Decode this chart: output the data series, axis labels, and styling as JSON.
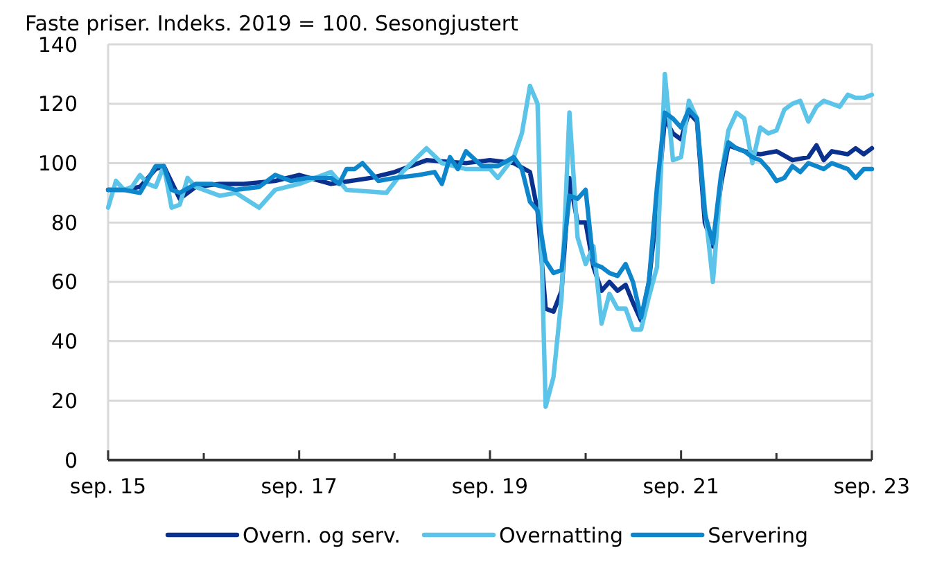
{
  "chart_data": {
    "type": "line",
    "title": "Faste priser. Indeks. 2019 = 100. Sesongjustert",
    "xlim": [
      "2015-09",
      "2023-09"
    ],
    "ylim": [
      0,
      140
    ],
    "yticks": [
      0,
      20,
      40,
      60,
      80,
      100,
      120,
      140
    ],
    "xticks": [
      {
        "value": "2015-09",
        "label": "sep. 15"
      },
      {
        "value": "2016-09",
        "label": null
      },
      {
        "value": "2017-09",
        "label": "sep. 17"
      },
      {
        "value": "2018-09",
        "label": null
      },
      {
        "value": "2019-09",
        "label": "sep. 19"
      },
      {
        "value": "2020-09",
        "label": null
      },
      {
        "value": "2021-09",
        "label": "sep. 21"
      },
      {
        "value": "2022-09",
        "label": null
      },
      {
        "value": "2023-09",
        "label": "sep. 23"
      }
    ],
    "grid": "y",
    "legend": "bottom",
    "line_style": "solid",
    "marker": "none",
    "series": [
      {
        "name": "Overn. og serv.",
        "color": "#0b318f",
        "x": [
          "2015-09",
          "2015-11",
          "2016-01",
          "2016-03",
          "2016-04",
          "2016-06",
          "2016-08",
          "2016-11",
          "2017-02",
          "2017-06",
          "2017-09",
          "2018-01",
          "2018-06",
          "2018-09",
          "2019-01",
          "2019-06",
          "2019-09",
          "2019-12",
          "2020-02",
          "2020-03",
          "2020-04",
          "2020-05",
          "2020-06",
          "2020-07",
          "2020-08",
          "2020-09",
          "2020-10",
          "2020-11",
          "2020-12",
          "2021-01",
          "2021-02",
          "2021-03",
          "2021-04",
          "2021-05",
          "2021-06",
          "2021-07",
          "2021-08",
          "2021-09",
          "2021-10",
          "2021-11",
          "2021-12",
          "2022-01",
          "2022-02",
          "2022-03",
          "2022-04",
          "2022-05",
          "2022-07",
          "2022-09",
          "2022-11",
          "2023-01",
          "2023-02",
          "2023-03",
          "2023-04",
          "2023-06",
          "2023-07",
          "2023-08",
          "2023-09"
        ],
        "values": [
          91,
          91,
          92,
          98,
          99,
          88,
          92,
          93,
          93,
          94,
          96,
          93,
          95,
          97,
          101,
          100,
          101,
          100,
          97,
          84,
          51,
          50,
          57,
          95,
          80,
          80,
          65,
          57,
          60,
          57,
          59,
          53,
          47,
          60,
          85,
          115,
          110,
          108,
          117,
          114,
          80,
          72,
          93,
          106,
          105,
          104,
          103,
          104,
          101,
          102,
          106,
          101,
          104,
          103,
          105,
          103,
          105
        ]
      },
      {
        "name": "Overnatting",
        "color": "#5bc4e8",
        "x": [
          "2015-09",
          "2015-10",
          "2015-11",
          "2015-12",
          "2016-01",
          "2016-02",
          "2016-03",
          "2016-04",
          "2016-05",
          "2016-06",
          "2016-07",
          "2016-08",
          "2016-11",
          "2017-01",
          "2017-04",
          "2017-06",
          "2017-09",
          "2018-01",
          "2018-03",
          "2018-08",
          "2018-10",
          "2019-01",
          "2019-03",
          "2019-06",
          "2019-09",
          "2019-10",
          "2019-12",
          "2020-01",
          "2020-02",
          "2020-03",
          "2020-04",
          "2020-05",
          "2020-06",
          "2020-07",
          "2020-08",
          "2020-09",
          "2020-10",
          "2020-11",
          "2020-12",
          "2021-01",
          "2021-02",
          "2021-03",
          "2021-04",
          "2021-05",
          "2021-06",
          "2021-07",
          "2021-08",
          "2021-09",
          "2021-10",
          "2021-11",
          "2021-12",
          "2022-01",
          "2022-02",
          "2022-03",
          "2022-04",
          "2022-05",
          "2022-06",
          "2022-07",
          "2022-08",
          "2022-09",
          "2022-10",
          "2022-11",
          "2022-12",
          "2023-01",
          "2023-02",
          "2023-03",
          "2023-04",
          "2023-05",
          "2023-06",
          "2023-07",
          "2023-08",
          "2023-09"
        ],
        "values": [
          85,
          94,
          91,
          92,
          96,
          93,
          92,
          99,
          85,
          86,
          95,
          92,
          89,
          90,
          85,
          91,
          93,
          97,
          91,
          90,
          97,
          105,
          100,
          98,
          98,
          95,
          102,
          110,
          126,
          120,
          18,
          28,
          55,
          117,
          75,
          66,
          72,
          46,
          56,
          51,
          51,
          44,
          44,
          55,
          65,
          130,
          101,
          102,
          121,
          115,
          85,
          60,
          95,
          111,
          117,
          115,
          100,
          112,
          110,
          111,
          118,
          120,
          121,
          114,
          119,
          121,
          120,
          119,
          123,
          122,
          122,
          123
        ]
      },
      {
        "name": "Servering",
        "color": "#0e86cc",
        "x": [
          "2015-09",
          "2015-11",
          "2016-01",
          "2016-03",
          "2016-04",
          "2016-05",
          "2016-06",
          "2016-08",
          "2016-10",
          "2017-01",
          "2017-04",
          "2017-06",
          "2017-08",
          "2017-10",
          "2018-01",
          "2018-02",
          "2018-03",
          "2018-04",
          "2018-05",
          "2018-07",
          "2018-09",
          "2018-12",
          "2019-02",
          "2019-03",
          "2019-04",
          "2019-05",
          "2019-06",
          "2019-08",
          "2019-10",
          "2019-12",
          "2020-01",
          "2020-02",
          "2020-03",
          "2020-04",
          "2020-05",
          "2020-06",
          "2020-07",
          "2020-08",
          "2020-09",
          "2020-10",
          "2020-11",
          "2020-12",
          "2021-01",
          "2021-02",
          "2021-03",
          "2021-04",
          "2021-05",
          "2021-06",
          "2021-07",
          "2021-08",
          "2021-09",
          "2021-10",
          "2021-11",
          "2021-12",
          "2022-01",
          "2022-02",
          "2022-03",
          "2022-04",
          "2022-05",
          "2022-06",
          "2022-07",
          "2022-08",
          "2022-09",
          "2022-10",
          "2022-11",
          "2022-12",
          "2023-01",
          "2023-02",
          "2023-03",
          "2023-04",
          "2023-05",
          "2023-06",
          "2023-07",
          "2023-08",
          "2023-09"
        ],
        "values": [
          91,
          91,
          90,
          99,
          99,
          91,
          90,
          93,
          93,
          91,
          92,
          96,
          94,
          95,
          95,
          93,
          98,
          98,
          100,
          94,
          95,
          96,
          97,
          93,
          102,
          98,
          104,
          99,
          99,
          102,
          98,
          87,
          84,
          67,
          63,
          64,
          89,
          88,
          91,
          66,
          65,
          63,
          62,
          66,
          60,
          48,
          60,
          92,
          117,
          115,
          112,
          118,
          115,
          83,
          73,
          96,
          107,
          105,
          104,
          102,
          101,
          98,
          94,
          95,
          99,
          97,
          100,
          99,
          98,
          100,
          99,
          98,
          95,
          98,
          98
        ]
      }
    ]
  }
}
